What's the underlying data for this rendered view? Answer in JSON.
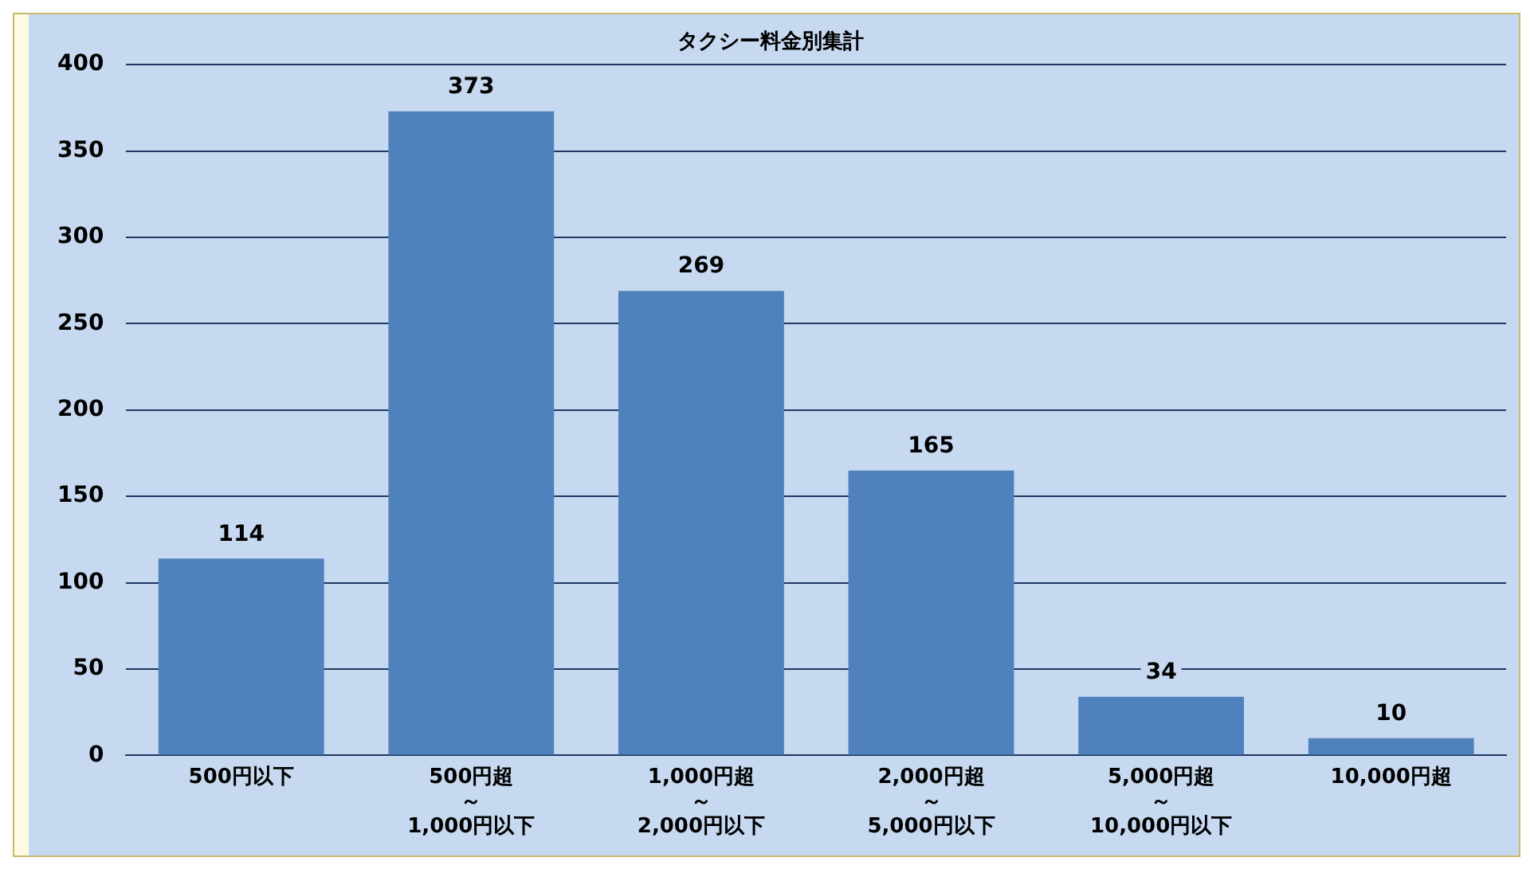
{
  "chart_data": {
    "type": "bar",
    "title": "タクシー料金別集計",
    "categories": [
      "500円以下",
      "500円超～1,000円以下",
      "1,000円超～2,000円以下",
      "2,000円超～5,000円以下",
      "5,000円超～10,000円以下",
      "10,000円超"
    ],
    "values": [
      114,
      373,
      269,
      165,
      34,
      10
    ],
    "color": "#4f81bd",
    "ylim": [
      0,
      400
    ],
    "yticks": [
      0,
      50,
      100,
      150,
      200,
      250,
      300,
      350,
      400
    ],
    "grid": "y",
    "data_labels": true
  }
}
